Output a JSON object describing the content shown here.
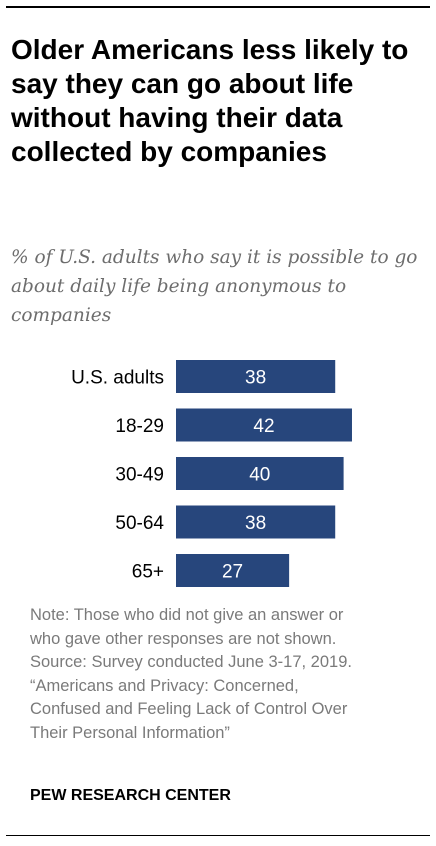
{
  "chart_data": {
    "type": "bar",
    "orientation": "horizontal",
    "title": "Older Americans less likely to say they can go about life without having their data collected by companies",
    "subtitle": "% of U.S. adults who say it is possible to go about daily life being anonymous to companies",
    "categories": [
      "U.S. adults",
      "18-29",
      "30-49",
      "50-64",
      "65+"
    ],
    "values": [
      38,
      42,
      40,
      38,
      27
    ],
    "xlim": [
      0,
      100
    ],
    "grid": false,
    "legend": "none",
    "bar_color": "#27467c"
  },
  "notes": [
    "Note: Those who did not give an answer or",
    "who gave other responses are not shown.",
    "Source: Survey conducted June 3-17, 2019.",
    "“Americans and Privacy: Concerned,",
    "Confused and Feeling Lack of Control Over",
    "Their Personal Information”"
  ],
  "footer": "PEW RESEARCH CENTER"
}
